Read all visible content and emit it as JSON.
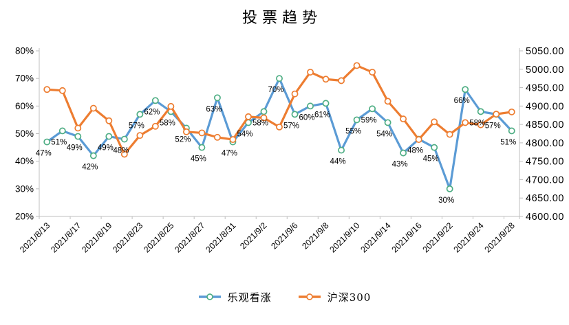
{
  "chart_data": {
    "type": "line",
    "title": "投票趋势",
    "legend_position": "bottom",
    "grid": false,
    "n_points": 31,
    "x_tick_labels": [
      "2021/8/13",
      "2021/8/17",
      "2021/8/19",
      "2021/8/23",
      "2021/8/25",
      "2021/8/27",
      "2021/8/31",
      "2021/9/2",
      "2021/9/6",
      "2021/9/8",
      "2021/9/10",
      "2021/9/14",
      "2021/9/16",
      "2021/9/22",
      "2021/9/24",
      "2021/9/28"
    ],
    "x_tick_every": 2,
    "left_axis": {
      "min": 20,
      "max": 80,
      "step": 10,
      "tick_labels": [
        "20%",
        "30%",
        "40%",
        "50%",
        "60%",
        "70%",
        "80%"
      ]
    },
    "right_axis": {
      "min": 4600,
      "max": 5050,
      "step": 50,
      "tick_labels": [
        "4600.00",
        "4650.00",
        "4700.00",
        "4750.00",
        "4800.00",
        "4850.00",
        "4900.00",
        "4950.00",
        "5000.00",
        "5050.00"
      ]
    },
    "series": [
      {
        "name": "乐观看涨",
        "axis": "left",
        "line_color": "#5B9BD5",
        "marker_stroke": "#4FAE84",
        "marker_fill": "#FFFFFF",
        "data_labels": true,
        "label_suffix": "%",
        "values": [
          47,
          51,
          49,
          42,
          49,
          48,
          57,
          62,
          58,
          52,
          45,
          63,
          47,
          54,
          58,
          70,
          57,
          60,
          61,
          44,
          55,
          59,
          54,
          43,
          48,
          45,
          30,
          66,
          58,
          57,
          51
        ]
      },
      {
        "name": "沪深300",
        "axis": "right",
        "line_color": "#ED7D31",
        "marker_stroke": "#ED7D31",
        "marker_fill": "#FFFFFF",
        "data_labels": false,
        "values": [
          4945,
          4942,
          4840,
          4894,
          4860,
          4769,
          4820,
          4845,
          4899,
          4830,
          4827,
          4815,
          4809,
          4871,
          4868,
          4843,
          4933,
          4992,
          4973,
          4969,
          5010,
          4992,
          4913,
          4865,
          4809,
          4857,
          4823,
          4855,
          4849,
          4878,
          4884
        ]
      }
    ]
  },
  "colors": {
    "blue_line": "#5B9BD5",
    "blue_marker_ring": "#4FAE84",
    "orange_line": "#ED7D31",
    "axis_line": "#BFBFBF",
    "text": "#000000",
    "background": "#FFFFFF"
  }
}
